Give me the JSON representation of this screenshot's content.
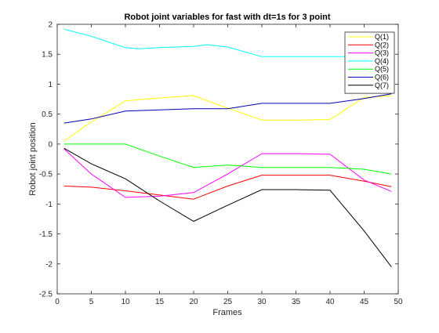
{
  "chart_data": {
    "type": "line",
    "title": "Robot joint variables for fast with dt=1s for 3 point",
    "xlabel": "Frames",
    "ylabel": "Robot joint position",
    "xlim": [
      0,
      50
    ],
    "ylim": [
      -2.5,
      2
    ],
    "xticks": [
      0,
      5,
      10,
      15,
      20,
      25,
      30,
      35,
      40,
      45,
      50
    ],
    "yticks": [
      -2.5,
      -2,
      -1.5,
      -1,
      -0.5,
      0,
      0.5,
      1,
      1.5,
      2
    ],
    "xtick_labels": [
      "0",
      "5",
      "10",
      "15",
      "20",
      "25",
      "30",
      "35",
      "40",
      "45",
      "50"
    ],
    "ytick_labels": [
      "-2.5",
      "-2",
      "-1.5",
      "-1",
      "-0.5",
      "0",
      "0.5",
      "1",
      "1.5",
      "2"
    ],
    "grid": false,
    "legend_position": "top-right",
    "series": [
      {
        "name": "Q(1)",
        "color": "#ffff00",
        "x": [
          1,
          5,
          10,
          15,
          20,
          25,
          30,
          35,
          40,
          45,
          49
        ],
        "y": [
          0.05,
          0.37,
          0.72,
          0.77,
          0.81,
          0.6,
          0.4,
          0.4,
          0.41,
          0.78,
          0.81
        ]
      },
      {
        "name": "Q(2)",
        "color": "#ff0000",
        "x": [
          1,
          5,
          10,
          15,
          20,
          25,
          30,
          35,
          40,
          45,
          49
        ],
        "y": [
          -0.7,
          -0.72,
          -0.78,
          -0.85,
          -0.92,
          -0.7,
          -0.52,
          -0.52,
          -0.52,
          -0.62,
          -0.71
        ]
      },
      {
        "name": "Q(3)",
        "color": "#ff00ff",
        "x": [
          1,
          5,
          10,
          15,
          20,
          25,
          30,
          35,
          40,
          45,
          49
        ],
        "y": [
          -0.08,
          -0.5,
          -0.89,
          -0.87,
          -0.81,
          -0.5,
          -0.16,
          -0.16,
          -0.17,
          -0.6,
          -0.79
        ]
      },
      {
        "name": "Q(4)",
        "color": "#00ffff",
        "x": [
          1,
          5,
          10,
          12,
          15,
          20,
          22,
          25,
          30,
          35,
          40,
          45,
          49
        ],
        "y": [
          1.92,
          1.8,
          1.61,
          1.59,
          1.61,
          1.63,
          1.66,
          1.62,
          1.46,
          1.46,
          1.46,
          1.46,
          1.46
        ]
      },
      {
        "name": "Q(5)",
        "color": "#00ff00",
        "x": [
          1,
          5,
          10,
          15,
          20,
          25,
          30,
          35,
          40,
          45,
          49
        ],
        "y": [
          0.0,
          0.0,
          0.0,
          -0.2,
          -0.39,
          -0.35,
          -0.39,
          -0.39,
          -0.39,
          -0.42,
          -0.5
        ]
      },
      {
        "name": "Q(6)",
        "color": "#0000b4",
        "x": [
          1,
          5,
          10,
          15,
          20,
          25,
          30,
          35,
          40,
          45,
          49
        ],
        "y": [
          0.35,
          0.42,
          0.55,
          0.57,
          0.59,
          0.59,
          0.68,
          0.68,
          0.68,
          0.76,
          0.84
        ]
      },
      {
        "name": "Q(7)",
        "color": "#000000",
        "x": [
          1,
          5,
          10,
          15,
          20,
          25,
          30,
          35,
          40,
          45,
          49
        ],
        "y": [
          -0.07,
          -0.33,
          -0.58,
          -0.95,
          -1.29,
          -1.02,
          -0.76,
          -0.76,
          -0.77,
          -1.45,
          -2.05
        ]
      }
    ]
  }
}
